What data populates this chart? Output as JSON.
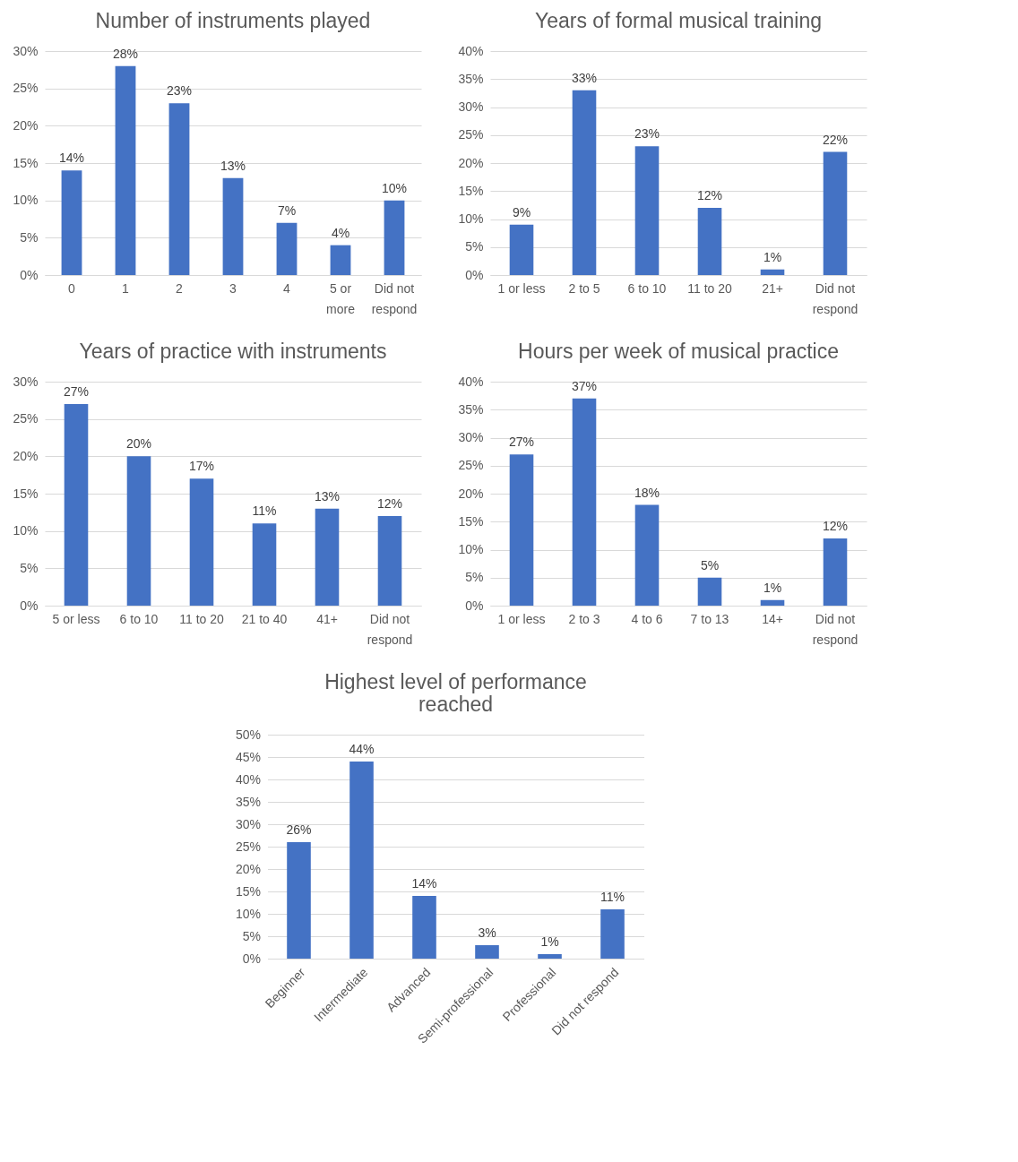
{
  "chart_data": [
    {
      "type": "bar",
      "title": "Number of instruments played",
      "categories": [
        "0",
        "1",
        "2",
        "3",
        "4",
        "5 or more",
        "Did not respond"
      ],
      "values": [
        14,
        28,
        23,
        13,
        7,
        4,
        10
      ],
      "value_labels": [
        "14%",
        "28%",
        "23%",
        "13%",
        "7%",
        "4%",
        "10%"
      ],
      "color": "#4472c4",
      "ylim": [
        0,
        30
      ],
      "yticks": [
        {
          "value": 0,
          "label": "0%"
        },
        {
          "value": 5,
          "label": "5%"
        },
        {
          "value": 10,
          "label": "10%"
        },
        {
          "value": 15,
          "label": "15%"
        },
        {
          "value": 20,
          "label": "20%"
        },
        {
          "value": 25,
          "label": "25%"
        },
        {
          "value": 30,
          "label": "30%"
        }
      ],
      "grid": "y"
    },
    {
      "type": "bar",
      "title": "Years of formal musical training",
      "categories": [
        "1 or less",
        "2 to 5",
        "6 to 10",
        "11 to 20",
        "21+",
        "Did not respond"
      ],
      "values": [
        9,
        33,
        23,
        12,
        1,
        22
      ],
      "value_labels": [
        "9%",
        "33%",
        "23%",
        "12%",
        "1%",
        "22%"
      ],
      "color": "#4472c4",
      "ylim": [
        0,
        40
      ],
      "yticks": [
        {
          "value": 0,
          "label": "0%"
        },
        {
          "value": 5,
          "label": "5%"
        },
        {
          "value": 10,
          "label": "10%"
        },
        {
          "value": 15,
          "label": "15%"
        },
        {
          "value": 20,
          "label": "20%"
        },
        {
          "value": 25,
          "label": "25%"
        },
        {
          "value": 30,
          "label": "30%"
        },
        {
          "value": 35,
          "label": "35%"
        },
        {
          "value": 40,
          "label": "40%"
        }
      ],
      "grid": "y"
    },
    {
      "type": "bar",
      "title": "Years of practice with instruments",
      "categories": [
        "5 or less",
        "6 to 10",
        "11 to 20",
        "21 to 40",
        "41+",
        "Did not respond"
      ],
      "values": [
        27,
        20,
        17,
        11,
        13,
        12
      ],
      "value_labels": [
        "27%",
        "20%",
        "17%",
        "11%",
        "13%",
        "12%"
      ],
      "color": "#4472c4",
      "ylim": [
        0,
        30
      ],
      "yticks": [
        {
          "value": 0,
          "label": "0%"
        },
        {
          "value": 5,
          "label": "5%"
        },
        {
          "value": 10,
          "label": "10%"
        },
        {
          "value": 15,
          "label": "15%"
        },
        {
          "value": 20,
          "label": "20%"
        },
        {
          "value": 25,
          "label": "25%"
        },
        {
          "value": 30,
          "label": "30%"
        }
      ],
      "grid": "y"
    },
    {
      "type": "bar",
      "title": "Hours per week of musical practice",
      "categories": [
        "1 or less",
        "2 to 3",
        "4 to 6",
        "7 to 13",
        "14+",
        "Did not respond"
      ],
      "values": [
        27,
        37,
        18,
        5,
        1,
        12
      ],
      "value_labels": [
        "27%",
        "37%",
        "18%",
        "5%",
        "1%",
        "12%"
      ],
      "color": "#4472c4",
      "ylim": [
        0,
        40
      ],
      "yticks": [
        {
          "value": 0,
          "label": "0%"
        },
        {
          "value": 5,
          "label": "5%"
        },
        {
          "value": 10,
          "label": "10%"
        },
        {
          "value": 15,
          "label": "15%"
        },
        {
          "value": 20,
          "label": "20%"
        },
        {
          "value": 25,
          "label": "25%"
        },
        {
          "value": 30,
          "label": "30%"
        },
        {
          "value": 35,
          "label": "35%"
        },
        {
          "value": 40,
          "label": "40%"
        }
      ],
      "grid": "y"
    },
    {
      "type": "bar",
      "title": "Highest level of performance reached",
      "categories": [
        "Beginner",
        "Intermediate",
        "Advanced",
        "Semi-professional",
        "Professional",
        "Did not respond"
      ],
      "values": [
        26,
        44,
        14,
        3,
        1,
        11
      ],
      "value_labels": [
        "26%",
        "44%",
        "14%",
        "3%",
        "1%",
        "11%"
      ],
      "color": "#4472c4",
      "ylim": [
        0,
        50
      ],
      "yticks": [
        {
          "value": 0,
          "label": "0%"
        },
        {
          "value": 5,
          "label": "5%"
        },
        {
          "value": 10,
          "label": "10%"
        },
        {
          "value": 15,
          "label": "15%"
        },
        {
          "value": 20,
          "label": "20%"
        },
        {
          "value": 25,
          "label": "25%"
        },
        {
          "value": 30,
          "label": "30%"
        },
        {
          "value": 35,
          "label": "35%"
        },
        {
          "value": 40,
          "label": "40%"
        },
        {
          "value": 45,
          "label": "45%"
        },
        {
          "value": 50,
          "label": "50%"
        }
      ],
      "grid": "y"
    }
  ]
}
